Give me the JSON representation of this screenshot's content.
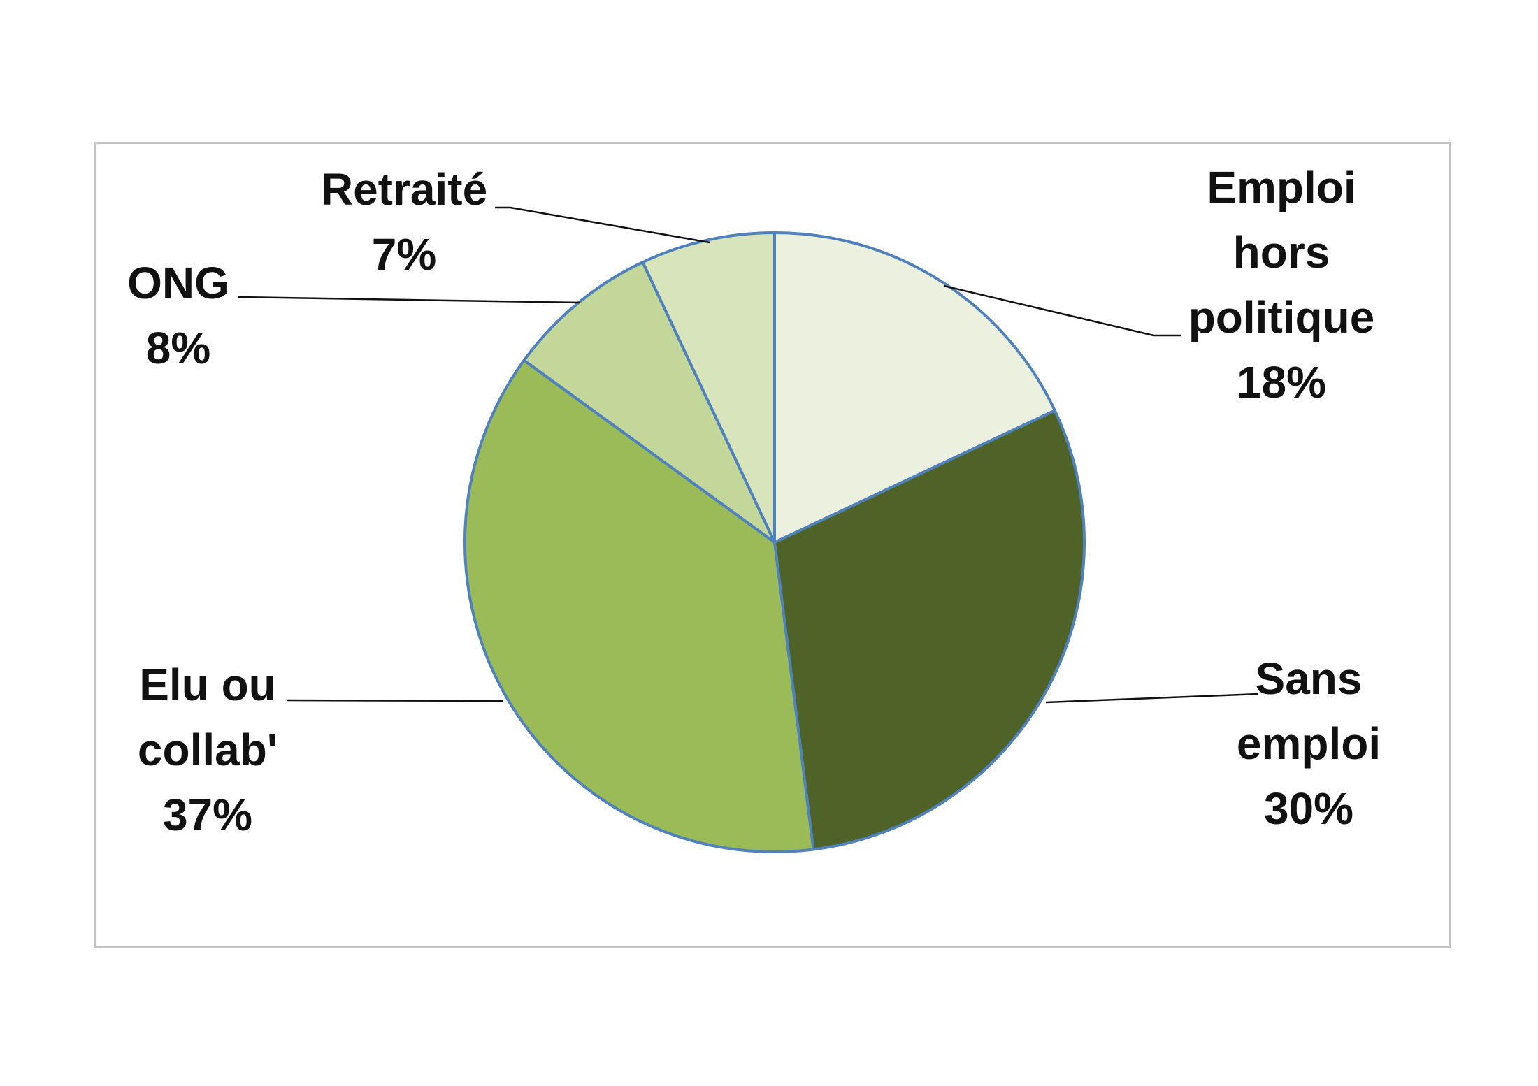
{
  "chart_data": {
    "type": "pie",
    "start_angle_deg": 0,
    "direction": "clockwise",
    "slices": [
      {
        "label_lines": [
          "Emploi",
          "hors",
          "politique"
        ],
        "percent_label": "18%",
        "value": 18,
        "color": "#ebf1de"
      },
      {
        "label_lines": [
          "Sans",
          "emploi"
        ],
        "percent_label": "30%",
        "value": 30,
        "color": "#4f6228"
      },
      {
        "label_lines": [
          "Elu ou",
          "collab'"
        ],
        "percent_label": "37%",
        "value": 37,
        "color": "#9bbb59"
      },
      {
        "label_lines": [
          "ONG"
        ],
        "percent_label": "8%",
        "value": 8,
        "color": "#c4d79b"
      },
      {
        "label_lines": [
          "Retraité"
        ],
        "percent_label": "7%",
        "value": 7,
        "color": "#d7e4bc"
      }
    ],
    "slice_border_color": "#4f81bd",
    "legend": "none",
    "data_labels": "outside-with-leader-lines"
  }
}
